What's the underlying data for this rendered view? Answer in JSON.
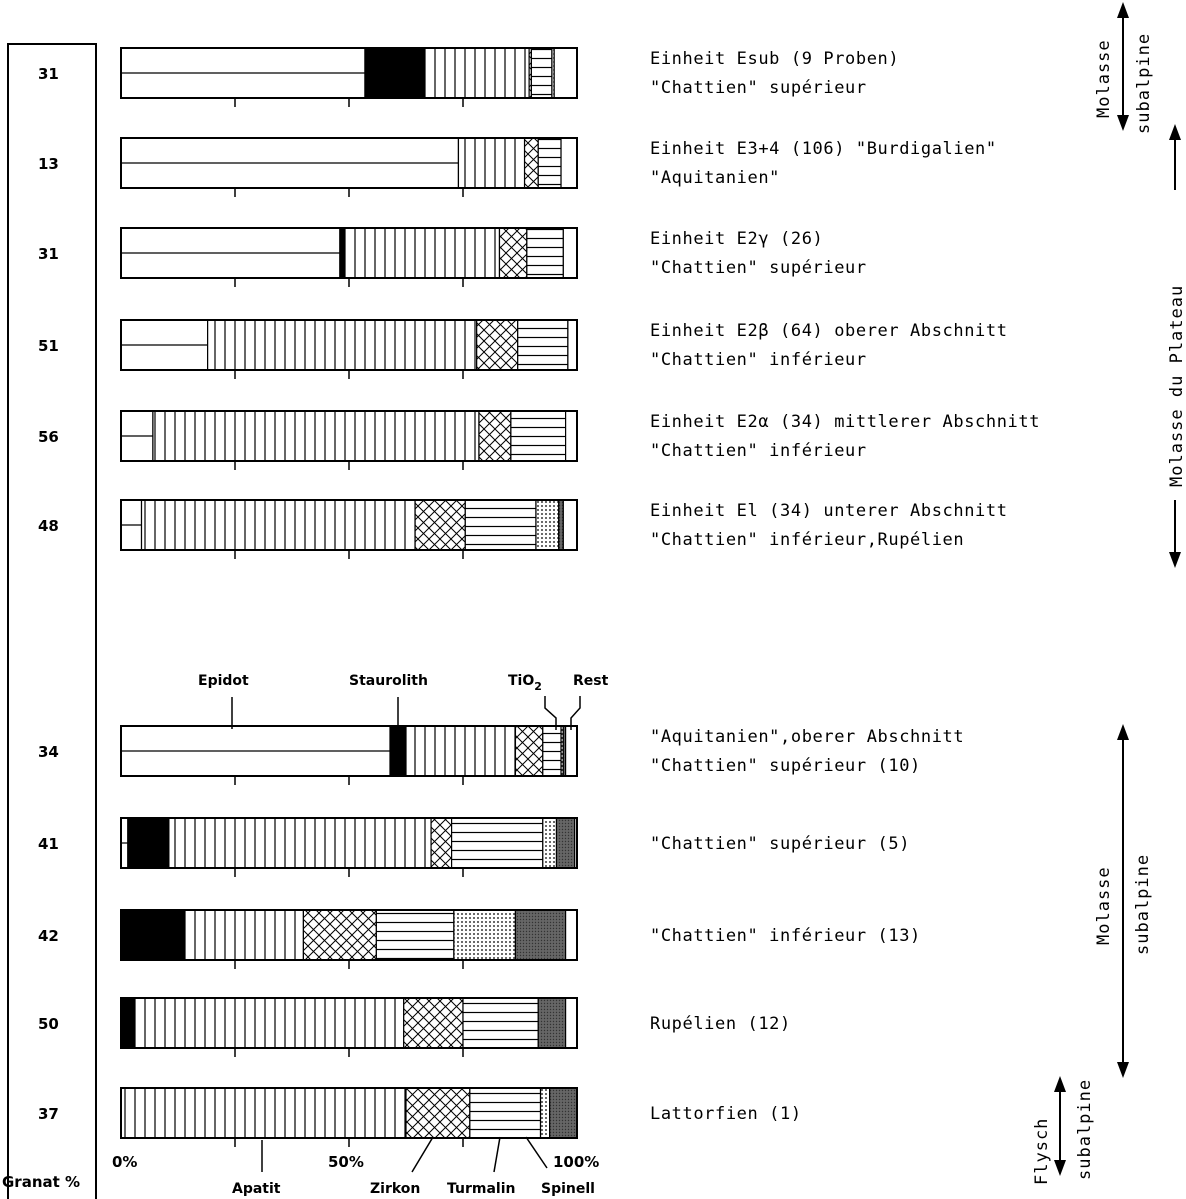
{
  "chart_data": {
    "type": "bar",
    "orientation": "horizontal-stacked-100",
    "components": [
      {
        "name": "Epidot",
        "pattern": "blank-split"
      },
      {
        "name": "Staurolith",
        "pattern": "solid-black"
      },
      {
        "name": "Apatit",
        "pattern": "vertical-lines"
      },
      {
        "name": "Zirkon",
        "pattern": "crosshatch"
      },
      {
        "name": "Turmalin",
        "pattern": "horizontal-lines"
      },
      {
        "name": "Spinell",
        "pattern": "dots"
      },
      {
        "name": "TiO2",
        "pattern": "dark-gray"
      },
      {
        "name": "Rest",
        "pattern": "blank"
      }
    ],
    "granat_header": "Granat %",
    "axis_ticks": [
      "0%",
      "50%",
      "100%"
    ],
    "xlim": [
      0,
      100
    ],
    "rows": [
      {
        "granat": "31",
        "label1": "Einheit Esub (9 Proben)",
        "label2": "\"Chattien\" supérieur",
        "values": {
          "Epidot": 53.5,
          "Staurolith": 13,
          "Apatit": 23,
          "Zirkon": 0.5,
          "Turmalin": 4.5,
          "Spinell": 0.5,
          "TiO2": 0,
          "Rest": 5
        }
      },
      {
        "granat": "13",
        "label1": "Einheit E3+4 (106) \"Burdigalien\"",
        "label2": "\"Aquitanien\"",
        "values": {
          "Epidot": 74,
          "Staurolith": 0,
          "Apatit": 14.5,
          "Zirkon": 3,
          "Turmalin": 5,
          "Spinell": 0,
          "TiO2": 0,
          "Rest": 3.5
        }
      },
      {
        "granat": "31",
        "label1": "Einheit E2γ (26)",
        "label2": "\"Chattien\" supérieur",
        "values": {
          "Epidot": 48,
          "Staurolith": 1,
          "Apatit": 34,
          "Zirkon": 6,
          "Turmalin": 8,
          "Spinell": 0,
          "TiO2": 0,
          "Rest": 3
        }
      },
      {
        "granat": "51",
        "label1": "Einheit E2β (64) oberer Abschnitt",
        "label2": "\"Chattien\" inférieur",
        "values": {
          "Epidot": 19,
          "Staurolith": 0,
          "Apatit": 59,
          "Zirkon": 9,
          "Turmalin": 11,
          "Spinell": 0,
          "TiO2": 0,
          "Rest": 2
        }
      },
      {
        "granat": "56",
        "label1": "Einheit E2α (34) mittlerer Abschnitt",
        "label2": "\"Chattien\" inférieur",
        "values": {
          "Epidot": 7,
          "Staurolith": 0,
          "Apatit": 71.5,
          "Zirkon": 7,
          "Turmalin": 12,
          "Spinell": 0,
          "TiO2": 0,
          "Rest": 2.5
        }
      },
      {
        "granat": "48",
        "label1": "Einheit El (34) unterer Abschnitt",
        "label2": "\"Chattien\" inférieur,Rupélien",
        "values": {
          "Epidot": 4.5,
          "Staurolith": 0,
          "Apatit": 60,
          "Zirkon": 11,
          "Turmalin": 15.5,
          "Spinell": 5,
          "TiO2": 1,
          "Rest": 3
        }
      },
      {
        "granat": "34",
        "label1": "\"Aquitanien\",oberer Abschnitt",
        "label2": "\"Chattien\" supérieur (10)",
        "values": {
          "Epidot": 59,
          "Staurolith": 3.5,
          "Apatit": 24,
          "Zirkon": 6,
          "Turmalin": 4,
          "Spinell": 0.5,
          "TiO2": 0.5,
          "Rest": 2.5
        }
      },
      {
        "granat": "41",
        "label1": "\"Chattien\" supérieur (5)",
        "label2": "",
        "values": {
          "Epidot": 1.5,
          "Staurolith": 9,
          "Apatit": 57.5,
          "Zirkon": 4.5,
          "Turmalin": 20,
          "Spinell": 3,
          "TiO2": 4,
          "Rest": 0.5
        }
      },
      {
        "granat": "42",
        "label1": "\"Chattien\" inférieur (13)",
        "label2": "",
        "values": {
          "Epidot": 0,
          "Staurolith": 14,
          "Apatit": 26,
          "Zirkon": 16,
          "Turmalin": 17,
          "Spinell": 13.5,
          "TiO2": 11,
          "Rest": 2.5
        }
      },
      {
        "granat": "50",
        "label1": "Rupélien (12)",
        "label2": "",
        "values": {
          "Epidot": 0,
          "Staurolith": 3,
          "Apatit": 59,
          "Zirkon": 13,
          "Turmalin": 16.5,
          "Spinell": 0,
          "TiO2": 6,
          "Rest": 2.5
        }
      },
      {
        "granat": "37",
        "label1": "Lattorfien (1)",
        "label2": "",
        "values": {
          "Epidot": 0,
          "Staurolith": 0,
          "Apatit": 62.5,
          "Zirkon": 14,
          "Turmalin": 15.5,
          "Spinell": 2,
          "TiO2": 6,
          "Rest": 0
        }
      }
    ],
    "top_labels": {
      "epidot": "Epidot",
      "staurolith": "Staurolith",
      "tio2": "TiO",
      "tio2_sub": "2",
      "rest": "Rest"
    },
    "bottom_labels": {
      "apatit": "Apatit",
      "zirkon": "Zirkon",
      "turmalin": "Turmalin",
      "spinell": "Spinell"
    },
    "side_labels": {
      "molasse": "Molasse",
      "subalpine": "subalpine",
      "molasse_plateau": "Molasse    du    Plateau",
      "flysch": "Flysch"
    }
  }
}
